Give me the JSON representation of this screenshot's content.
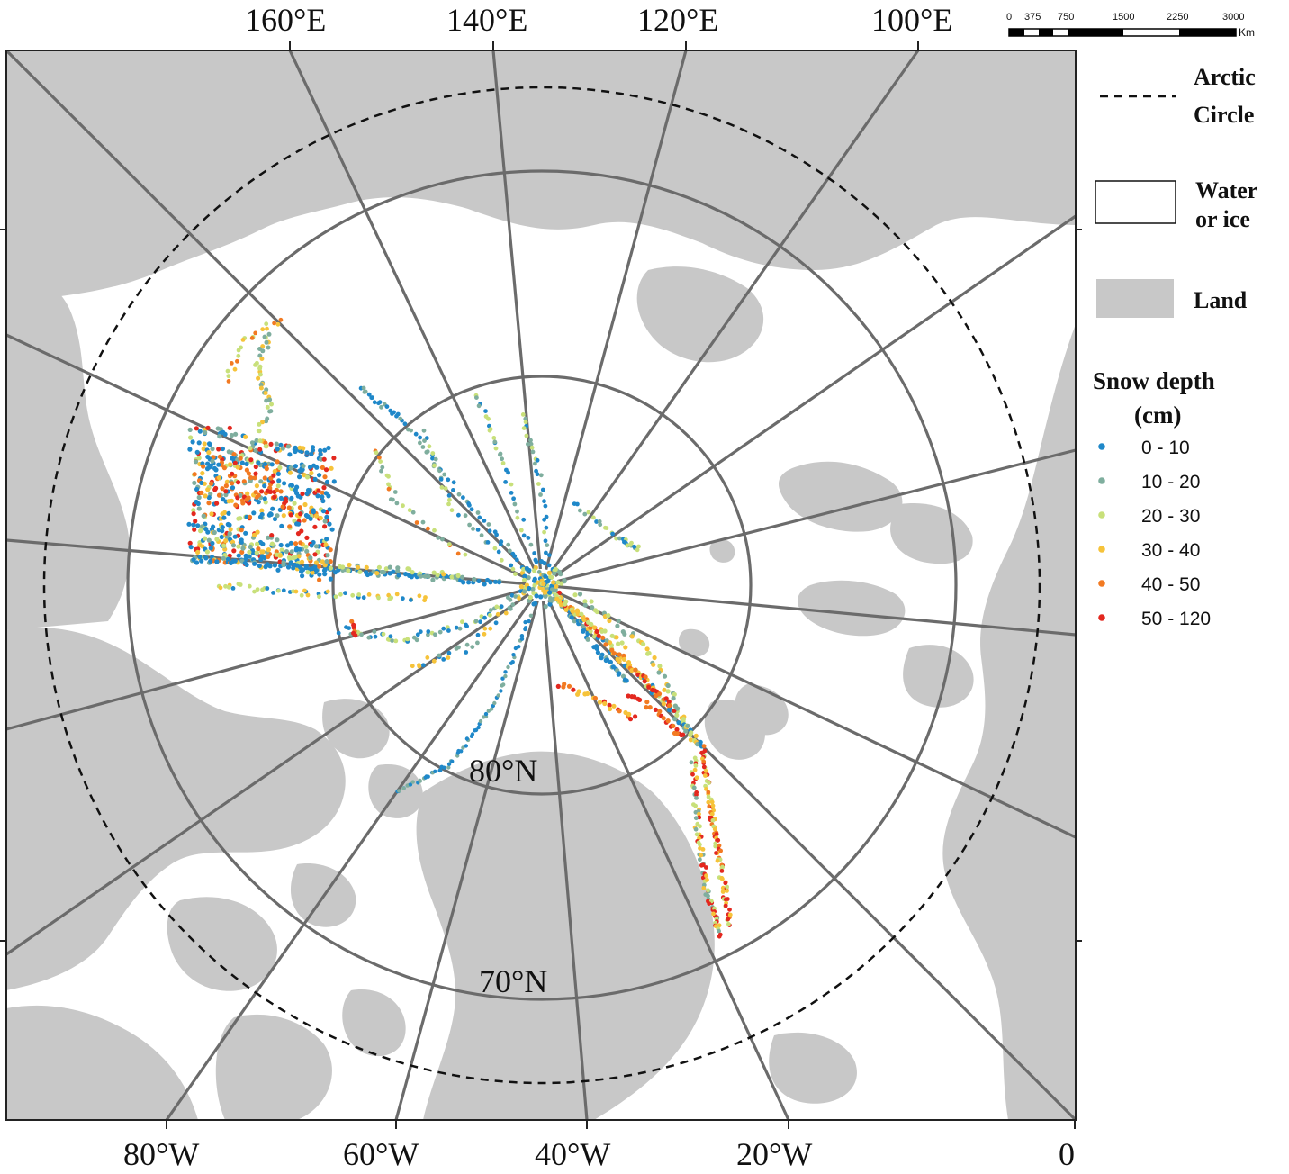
{
  "map": {
    "lon_labels_top": [
      "160°E",
      "140°E",
      "120°E",
      "100°E"
    ],
    "lon_labels_bottom": [
      "80°W",
      "60°W",
      "40°W",
      "20°W",
      "0"
    ],
    "lat_labels": [
      "80°N",
      "70°N"
    ],
    "colors": {
      "land": "#c8c8c8",
      "water": "#ffffff",
      "graticule": "#6b6b6b",
      "arctic_circle": "#111111"
    }
  },
  "scale_bar": {
    "ticks": [
      "0",
      "375",
      "750",
      "1500",
      "2250",
      "3000"
    ],
    "unit": "Km"
  },
  "legend": {
    "arctic_circle_line1": "Arctic",
    "arctic_circle_line2": "Circle",
    "water_line1": "Water",
    "water_line2": "or ice",
    "land": "Land",
    "snow_title_line1": "Snow depth",
    "snow_title_line2": "(cm)",
    "classes": [
      {
        "label": "0  -  10",
        "color": "#1f88c9"
      },
      {
        "label": "10  -  20",
        "color": "#7fae9e"
      },
      {
        "label": "20  -  30",
        "color": "#c8e07a"
      },
      {
        "label": "30  -  40",
        "color": "#f6c33a"
      },
      {
        "label": "40  -  50",
        "color": "#f27a22"
      },
      {
        "label": "50  -  120",
        "color": "#e3281f"
      }
    ]
  }
}
